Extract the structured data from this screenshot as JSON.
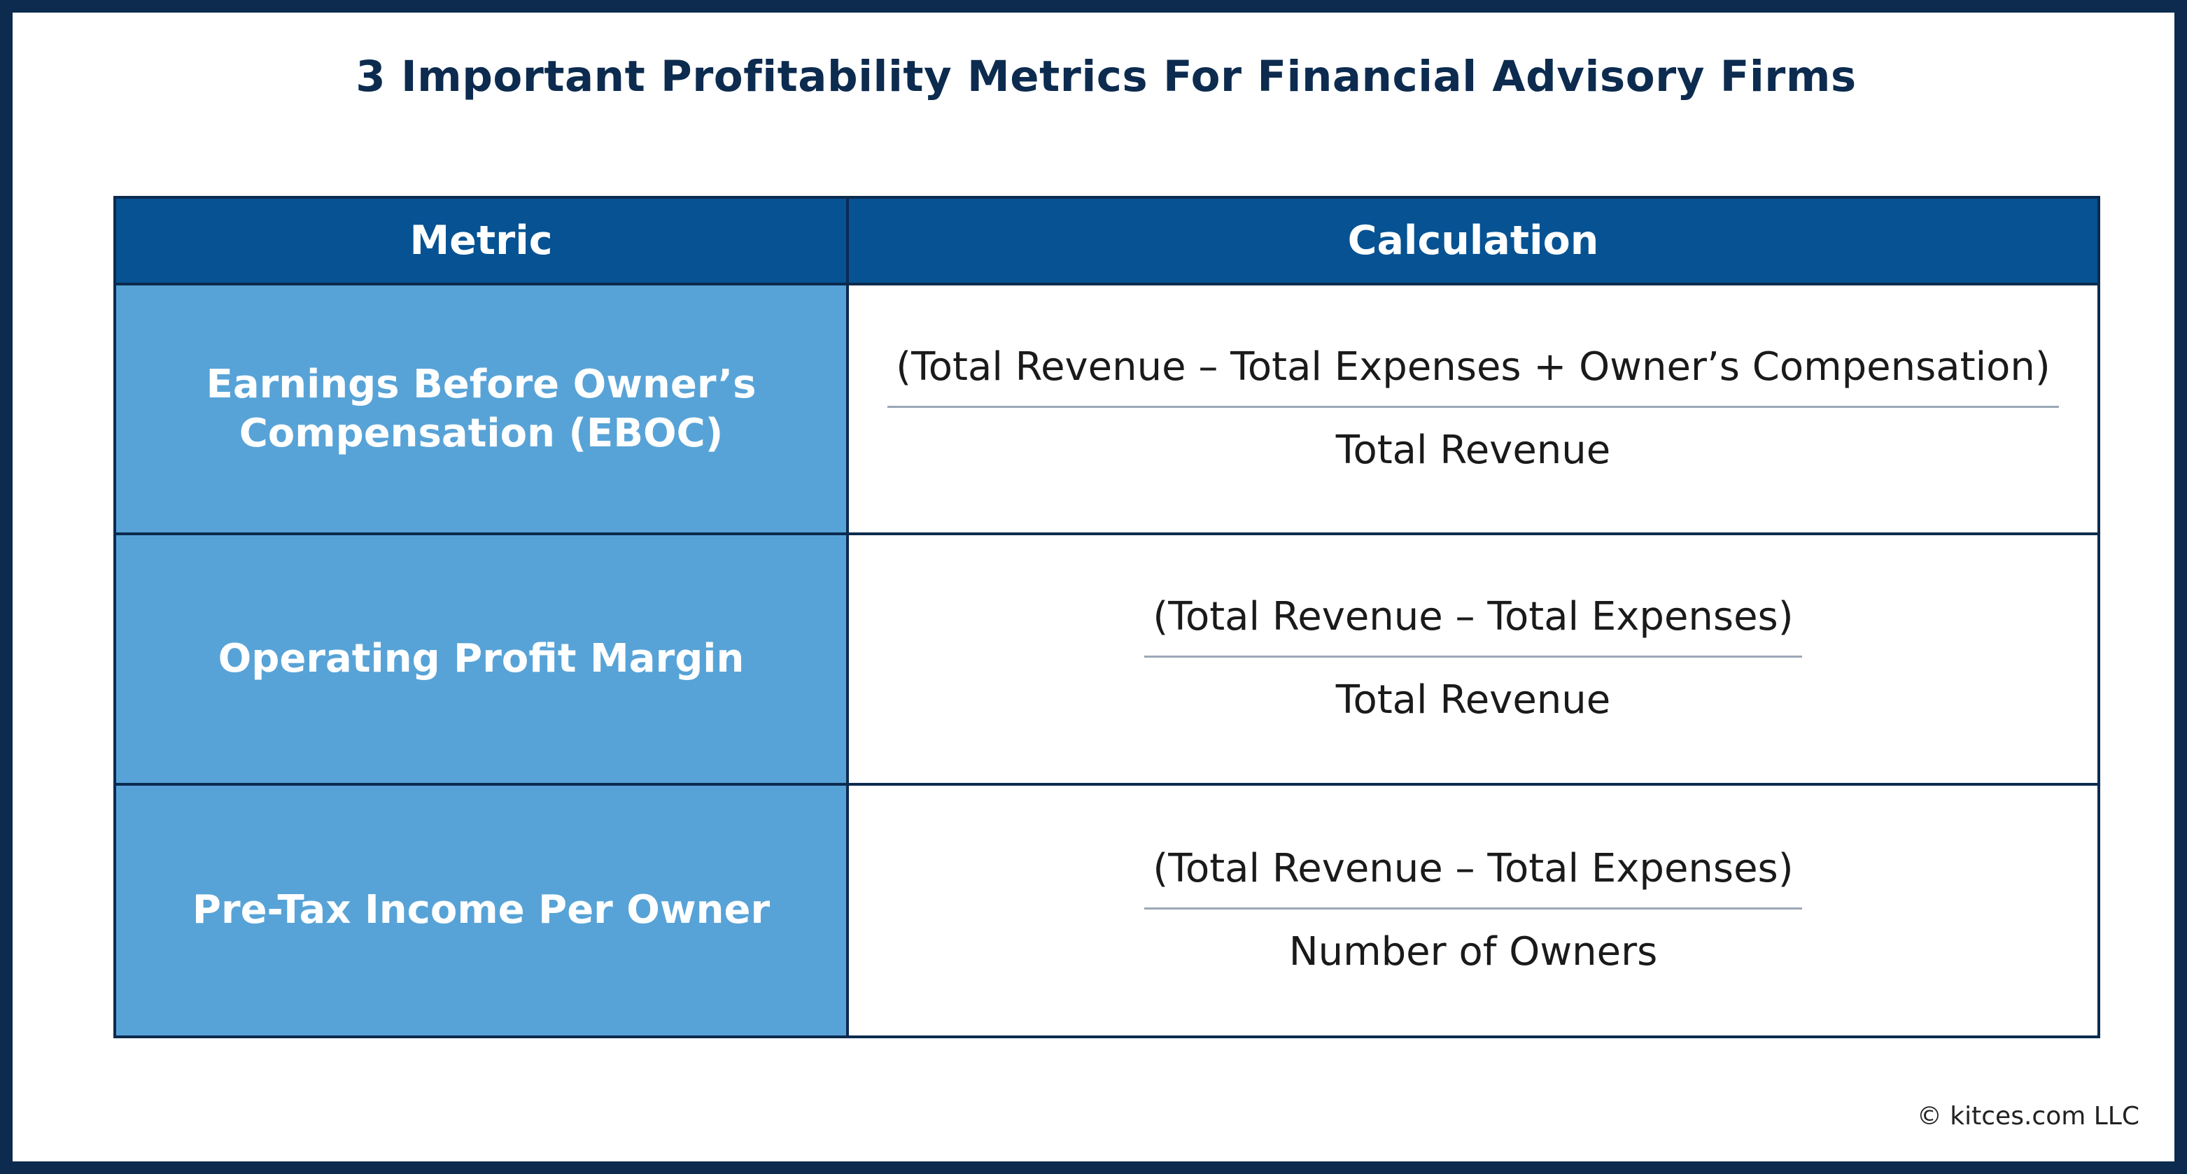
{
  "title": "3 Important Profitability Metrics For Financial Advisory Firms",
  "table": {
    "headers": {
      "metric": "Metric",
      "calculation": "Calculation"
    },
    "rows": [
      {
        "metric": "Earnings Before Owner’s Compensation (EBOC)",
        "numerator": "(Total Revenue – Total Expenses + Owner’s Compensation)",
        "denominator": "Total Revenue"
      },
      {
        "metric": "Operating Profit Margin",
        "numerator": "(Total Revenue – Total Expenses)",
        "denominator": "Total Revenue"
      },
      {
        "metric": "Pre-Tax Income Per Owner",
        "numerator": "(Total Revenue – Total Expenses)",
        "denominator": "Number of Owners"
      }
    ]
  },
  "footer": {
    "copyright": "© kitces.com LLC"
  },
  "colors": {
    "frame": "#0c2b4f",
    "header_bg": "#065293",
    "metric_bg": "#57a3d7",
    "fraction_rule": "#9aa7b6"
  }
}
